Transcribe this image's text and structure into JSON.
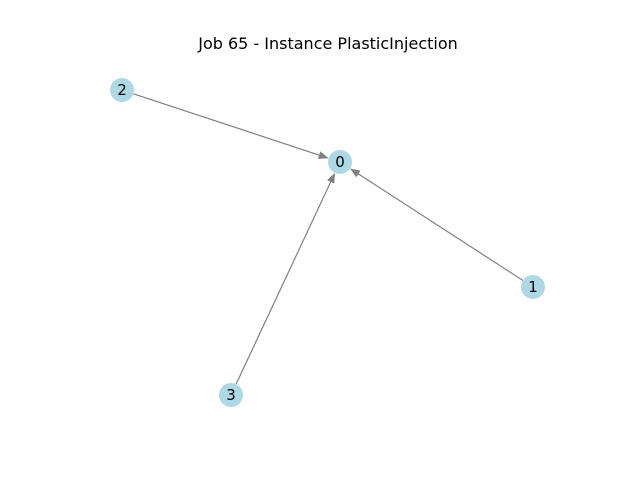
{
  "title": "Job 65 - Instance PlasticInjection",
  "colors": {
    "node_fill": "#add8e6",
    "edge": "#808080",
    "label": "#000000",
    "background": "#ffffff"
  },
  "graph": {
    "directed": true,
    "nodes": [
      {
        "id": "0",
        "label": "0"
      },
      {
        "id": "1",
        "label": "1"
      },
      {
        "id": "2",
        "label": "2"
      },
      {
        "id": "3",
        "label": "3"
      }
    ],
    "edges": [
      {
        "source": "2",
        "target": "0"
      },
      {
        "source": "1",
        "target": "0"
      },
      {
        "source": "3",
        "target": "0"
      }
    ]
  }
}
